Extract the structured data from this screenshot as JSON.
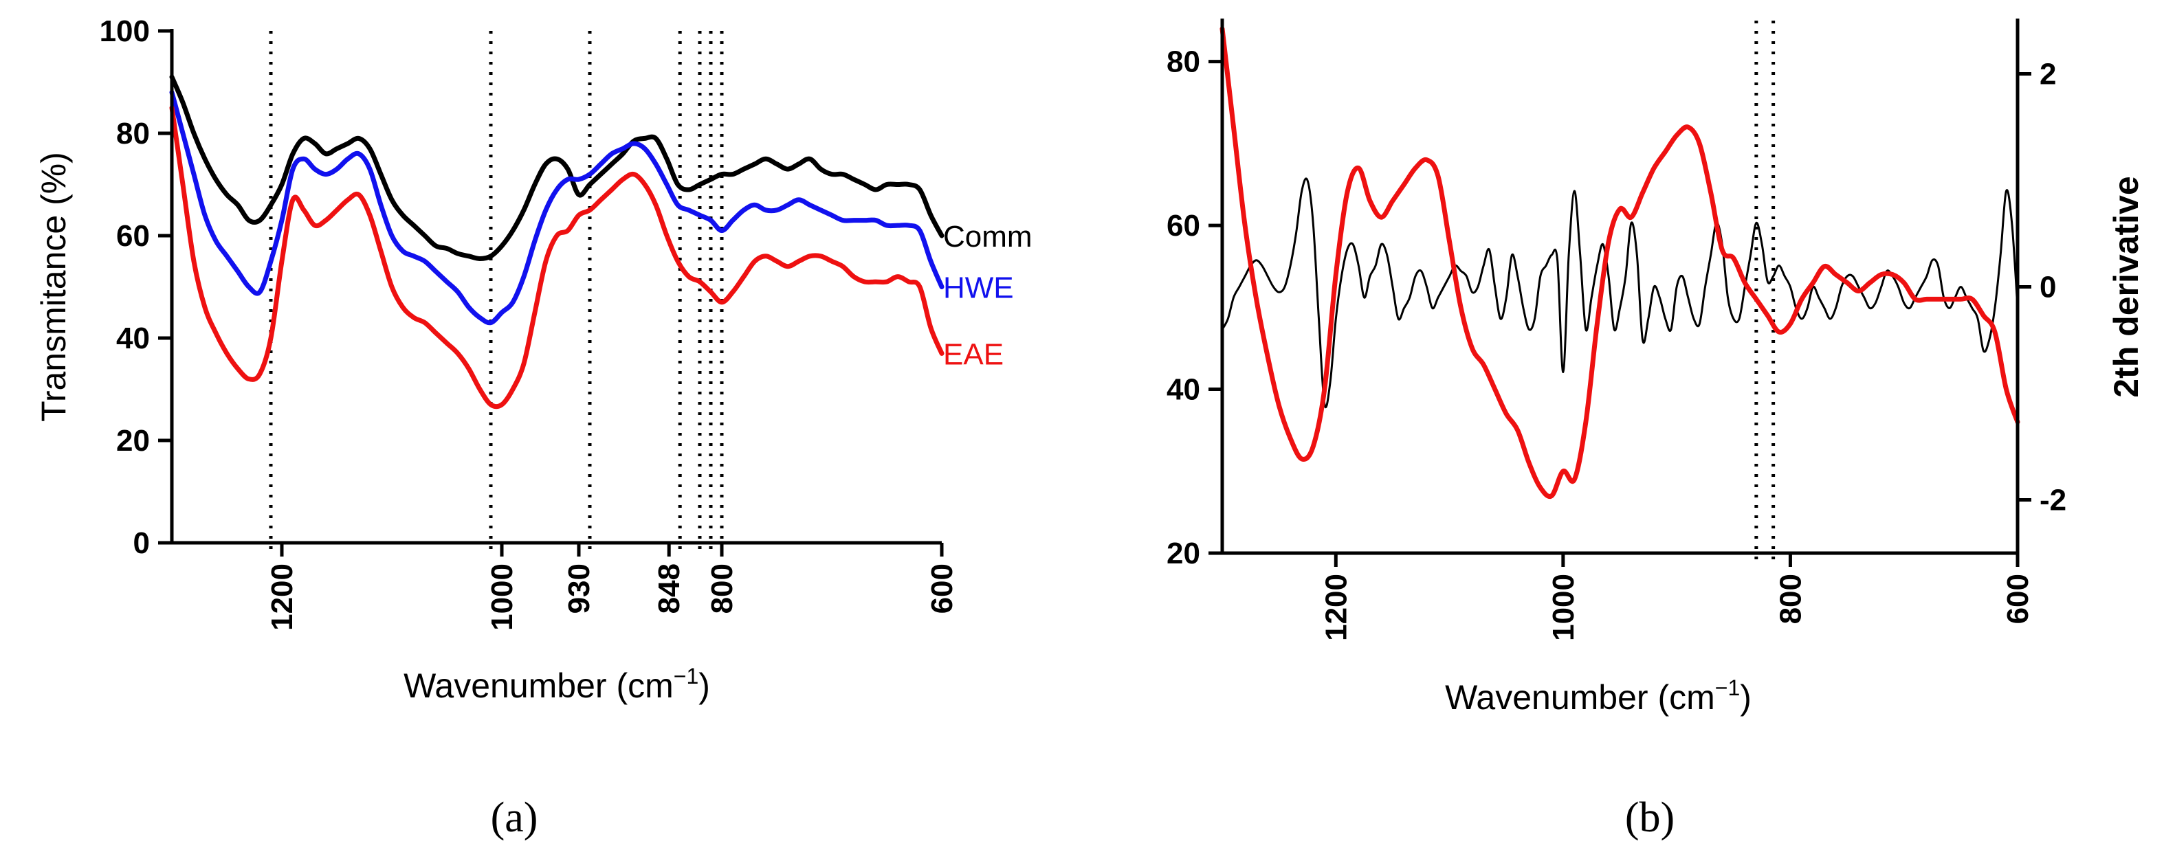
{
  "chart_data": [
    {
      "panel": "a",
      "type": "line",
      "panel_label": "(a)",
      "xlabel_main": "Wavenumber (cm",
      "xlabel_sup": "−1",
      "xlabel_close": ")",
      "ylabel": "Transmitance (%)",
      "xlim": [
        1300,
        600
      ],
      "ylim": [
        0,
        100
      ],
      "yticks": [
        0,
        20,
        40,
        60,
        80,
        100
      ],
      "xticks": [
        1200,
        1000,
        930,
        848,
        800,
        600
      ],
      "reference_lines": [
        1210,
        1010,
        920,
        838,
        820,
        810,
        800
      ],
      "series": [
        {
          "name": "Comm",
          "color": "#000000",
          "x": [
            1300,
            1290,
            1280,
            1270,
            1260,
            1250,
            1240,
            1230,
            1220,
            1210,
            1200,
            1190,
            1180,
            1170,
            1160,
            1150,
            1140,
            1130,
            1120,
            1110,
            1100,
            1090,
            1080,
            1070,
            1060,
            1050,
            1040,
            1030,
            1020,
            1010,
            1000,
            990,
            980,
            970,
            960,
            950,
            940,
            930,
            920,
            910,
            900,
            890,
            880,
            870,
            860,
            850,
            840,
            830,
            820,
            810,
            800,
            790,
            780,
            770,
            760,
            750,
            740,
            730,
            720,
            710,
            700,
            690,
            680,
            670,
            660,
            650,
            640,
            630,
            620,
            610,
            600
          ],
          "y": [
            91,
            86,
            80,
            75,
            71,
            68,
            66,
            63,
            63,
            66,
            70,
            76,
            79,
            78,
            76,
            77,
            78,
            79,
            77,
            72,
            67,
            64,
            62,
            60,
            58,
            57.5,
            56.5,
            56,
            55.5,
            56,
            58,
            61,
            65,
            70,
            74,
            75,
            73,
            68,
            70,
            72,
            74,
            76,
            78.5,
            79,
            79,
            75,
            70,
            69,
            70,
            71,
            72,
            72,
            73,
            74,
            75,
            74,
            73,
            74,
            75,
            73,
            72,
            72,
            71,
            70,
            69,
            70,
            70,
            70,
            69,
            64,
            60
          ]
        },
        {
          "name": "HWE",
          "color": "#1111ee",
          "x": [
            1300,
            1290,
            1280,
            1270,
            1260,
            1250,
            1240,
            1230,
            1220,
            1210,
            1200,
            1190,
            1180,
            1170,
            1160,
            1150,
            1140,
            1130,
            1120,
            1110,
            1100,
            1090,
            1080,
            1070,
            1060,
            1050,
            1040,
            1030,
            1020,
            1010,
            1000,
            990,
            980,
            970,
            960,
            950,
            940,
            930,
            920,
            910,
            900,
            890,
            880,
            870,
            860,
            850,
            840,
            830,
            820,
            810,
            800,
            790,
            780,
            770,
            760,
            750,
            740,
            730,
            720,
            710,
            700,
            690,
            680,
            670,
            660,
            650,
            640,
            630,
            620,
            610,
            600
          ],
          "y": [
            88,
            80,
            72,
            64,
            59,
            56,
            53,
            50,
            49,
            55,
            63,
            73,
            75,
            73,
            72,
            73,
            75,
            76,
            73,
            66,
            60,
            57,
            56,
            55,
            53,
            51,
            49,
            46,
            44,
            43,
            45,
            47,
            52,
            59,
            65,
            69,
            71,
            71,
            72,
            74,
            76,
            77,
            78,
            77,
            74,
            70,
            66,
            65,
            64,
            63,
            61,
            63,
            65,
            66,
            65,
            65,
            66,
            67,
            66,
            65,
            64,
            63,
            63,
            63,
            63,
            62,
            62,
            62,
            61,
            55,
            50
          ]
        },
        {
          "name": "EAE",
          "color": "#ee1111",
          "x": [
            1300,
            1290,
            1280,
            1270,
            1260,
            1250,
            1240,
            1230,
            1220,
            1210,
            1200,
            1190,
            1180,
            1170,
            1160,
            1150,
            1140,
            1130,
            1120,
            1110,
            1100,
            1090,
            1080,
            1070,
            1060,
            1050,
            1040,
            1030,
            1020,
            1010,
            1000,
            990,
            980,
            970,
            960,
            950,
            940,
            930,
            920,
            910,
            900,
            890,
            880,
            870,
            860,
            850,
            840,
            830,
            820,
            810,
            800,
            790,
            780,
            770,
            760,
            750,
            740,
            730,
            720,
            710,
            700,
            690,
            680,
            670,
            660,
            650,
            640,
            630,
            620,
            610,
            600
          ],
          "y": [
            85,
            70,
            55,
            46,
            41,
            37,
            34,
            32,
            33,
            40,
            55,
            67,
            65,
            62,
            63,
            65,
            67,
            68,
            64,
            57,
            50,
            46,
            44,
            43,
            41,
            39,
            37,
            34,
            30,
            27,
            27,
            30,
            35,
            45,
            55,
            60,
            61,
            64,
            65,
            67,
            69,
            71,
            72,
            70,
            66,
            60,
            55,
            52,
            51,
            49,
            47,
            49,
            52,
            55,
            56,
            55,
            54,
            55,
            56,
            56,
            55,
            54,
            52,
            51,
            51,
            51,
            52,
            51,
            50,
            42,
            37
          ]
        }
      ]
    },
    {
      "panel": "b",
      "type": "line",
      "panel_label": "(b)",
      "xlabel_main": "Wavenumber (cm",
      "xlabel_sup": "−1",
      "xlabel_close": ")",
      "ylabel_right": "2th derivative",
      "xlim": [
        1300,
        600
      ],
      "ylim": [
        20,
        85
      ],
      "ylim_right": [
        -2.5,
        2.5
      ],
      "yticks": [
        20,
        40,
        60,
        80
      ],
      "yticks_right": [
        -2,
        0,
        2
      ],
      "xticks": [
        1200,
        1000,
        800,
        600
      ],
      "reference_lines": [
        830,
        815
      ],
      "series": [
        {
          "name": "EAE",
          "color": "#ee1111",
          "axis": "left",
          "x": [
            1300,
            1290,
            1280,
            1270,
            1260,
            1250,
            1240,
            1230,
            1220,
            1210,
            1200,
            1190,
            1180,
            1170,
            1160,
            1150,
            1140,
            1130,
            1120,
            1110,
            1100,
            1090,
            1080,
            1070,
            1060,
            1050,
            1040,
            1030,
            1020,
            1010,
            1000,
            990,
            980,
            970,
            960,
            950,
            940,
            930,
            920,
            910,
            900,
            890,
            880,
            870,
            860,
            850,
            840,
            830,
            820,
            810,
            800,
            790,
            780,
            770,
            760,
            750,
            740,
            730,
            720,
            710,
            700,
            690,
            680,
            670,
            660,
            650,
            640,
            630,
            620,
            610,
            600
          ],
          "y": [
            84,
            72,
            60,
            51,
            44,
            38,
            34,
            31.5,
            33,
            40,
            54,
            64,
            67,
            63,
            61,
            63,
            65,
            67,
            68,
            66,
            58,
            50,
            45,
            43,
            40,
            37,
            35,
            31,
            28,
            27,
            30,
            29,
            36,
            48,
            58,
            62,
            61,
            64,
            67,
            69,
            71,
            72,
            70,
            64,
            57,
            56,
            53,
            51,
            49,
            47,
            48,
            51,
            53,
            55,
            54,
            53,
            52,
            53,
            54,
            54,
            53,
            51,
            51,
            51,
            51,
            51,
            51,
            49,
            47,
            40,
            36
          ]
        },
        {
          "name": "2th derivative",
          "color": "#000000",
          "axis": "right",
          "x": [
            1300,
            1295,
            1290,
            1285,
            1280,
            1275,
            1270,
            1265,
            1260,
            1255,
            1250,
            1245,
            1240,
            1235,
            1230,
            1225,
            1220,
            1215,
            1210,
            1205,
            1200,
            1195,
            1190,
            1185,
            1180,
            1175,
            1170,
            1165,
            1160,
            1155,
            1150,
            1145,
            1140,
            1135,
            1130,
            1125,
            1120,
            1115,
            1110,
            1105,
            1100,
            1095,
            1090,
            1085,
            1080,
            1075,
            1070,
            1065,
            1060,
            1055,
            1050,
            1045,
            1040,
            1035,
            1030,
            1025,
            1020,
            1015,
            1010,
            1005,
            1000,
            995,
            990,
            985,
            980,
            975,
            970,
            965,
            960,
            955,
            950,
            945,
            940,
            935,
            930,
            925,
            920,
            915,
            910,
            905,
            900,
            895,
            890,
            885,
            880,
            875,
            870,
            865,
            860,
            855,
            850,
            845,
            840,
            835,
            830,
            825,
            820,
            815,
            810,
            805,
            800,
            795,
            790,
            785,
            780,
            775,
            770,
            765,
            760,
            755,
            750,
            745,
            740,
            735,
            730,
            725,
            720,
            715,
            710,
            705,
            700,
            695,
            690,
            685,
            680,
            675,
            670,
            665,
            660,
            655,
            650,
            645,
            640,
            635,
            630,
            625,
            620,
            615,
            610,
            605,
            600
          ],
          "y": [
            -0.4,
            -0.3,
            -0.1,
            0.0,
            0.1,
            0.2,
            0.25,
            0.2,
            0.1,
            0.0,
            -0.05,
            0.0,
            0.2,
            0.5,
            0.9,
            1.0,
            0.6,
            -0.3,
            -1.1,
            -0.9,
            -0.3,
            0.1,
            0.35,
            0.4,
            0.2,
            -0.1,
            0.1,
            0.2,
            0.4,
            0.3,
            0.0,
            -0.3,
            -0.2,
            -0.1,
            0.1,
            0.15,
            0.0,
            -0.2,
            -0.1,
            0.0,
            0.1,
            0.2,
            0.15,
            0.1,
            -0.05,
            0.0,
            0.2,
            0.35,
            0.0,
            -0.3,
            -0.1,
            0.3,
            0.1,
            -0.2,
            -0.4,
            -0.3,
            0.1,
            0.2,
            0.3,
            0.25,
            -0.8,
            0.3,
            0.9,
            0.3,
            -0.4,
            -0.1,
            0.2,
            0.4,
            0.1,
            -0.4,
            -0.2,
            0.1,
            0.6,
            0.3,
            -0.5,
            -0.3,
            0.0,
            -0.1,
            -0.3,
            -0.4,
            0.0,
            0.1,
            -0.1,
            -0.3,
            -0.35,
            0.0,
            0.3,
            0.6,
            0.4,
            -0.1,
            -0.3,
            -0.3,
            0.0,
            0.3,
            0.6,
            0.4,
            0.05,
            0.1,
            0.2,
            0.1,
            0.0,
            -0.2,
            -0.3,
            -0.2,
            0.0,
            -0.1,
            -0.2,
            -0.3,
            -0.2,
            0.0,
            0.1,
            0.1,
            0.0,
            -0.1,
            -0.2,
            -0.15,
            0.0,
            0.15,
            0.1,
            0.0,
            -0.15,
            -0.2,
            -0.1,
            0.0,
            0.1,
            0.25,
            0.2,
            -0.1,
            -0.2,
            -0.1,
            0.0,
            -0.1,
            -0.2,
            -0.3,
            -0.6,
            -0.5,
            -0.2,
            0.3,
            0.9,
            0.6,
            -0.2
          ]
        }
      ]
    }
  ]
}
